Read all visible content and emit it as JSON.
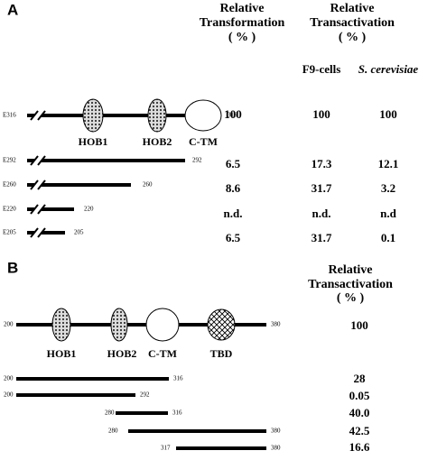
{
  "panel_a": {
    "label": "A",
    "transformation_header": [
      "Relative",
      "Transformation",
      "( % )"
    ],
    "transactivation_header": [
      "Relative",
      "Transactivation",
      "( % )"
    ],
    "subheaders": [
      "F9-cells",
      "S. cerevisiae"
    ],
    "domains": [
      "HOB1",
      "HOB2",
      "C-TM"
    ],
    "rows": [
      {
        "name": "E316",
        "end": "316",
        "values": [
          "100",
          "100",
          "100"
        ]
      },
      {
        "name": "E292",
        "end": "292",
        "values": [
          "6.5",
          "17.3",
          "12.1"
        ]
      },
      {
        "name": "E260",
        "end": "260",
        "values": [
          "8.6",
          "31.7",
          "3.2"
        ]
      },
      {
        "name": "E220",
        "end": "220",
        "values": [
          "n.d.",
          "n.d.",
          "n.d"
        ]
      },
      {
        "name": "E205",
        "end": "205",
        "values": [
          "6.5",
          "31.7",
          "0.1"
        ]
      }
    ]
  },
  "panel_b": {
    "label": "B",
    "transactivation_header": [
      "Relative",
      "Transactivation",
      "( % )"
    ],
    "domains": [
      "HOB1",
      "HOB2",
      "C-TM",
      "TBD"
    ],
    "rows": [
      {
        "start": "200",
        "end": "380",
        "value": "100"
      },
      {
        "start": "200",
        "end": "316",
        "value": "28"
      },
      {
        "start": "200",
        "end": "292",
        "value": "0.05"
      },
      {
        "start": "280",
        "end": "316",
        "value": "40.0"
      },
      {
        "start": "280",
        "end": "380",
        "value": "42.5"
      },
      {
        "start": "317",
        "end": "380",
        "value": "16.6"
      }
    ]
  }
}
